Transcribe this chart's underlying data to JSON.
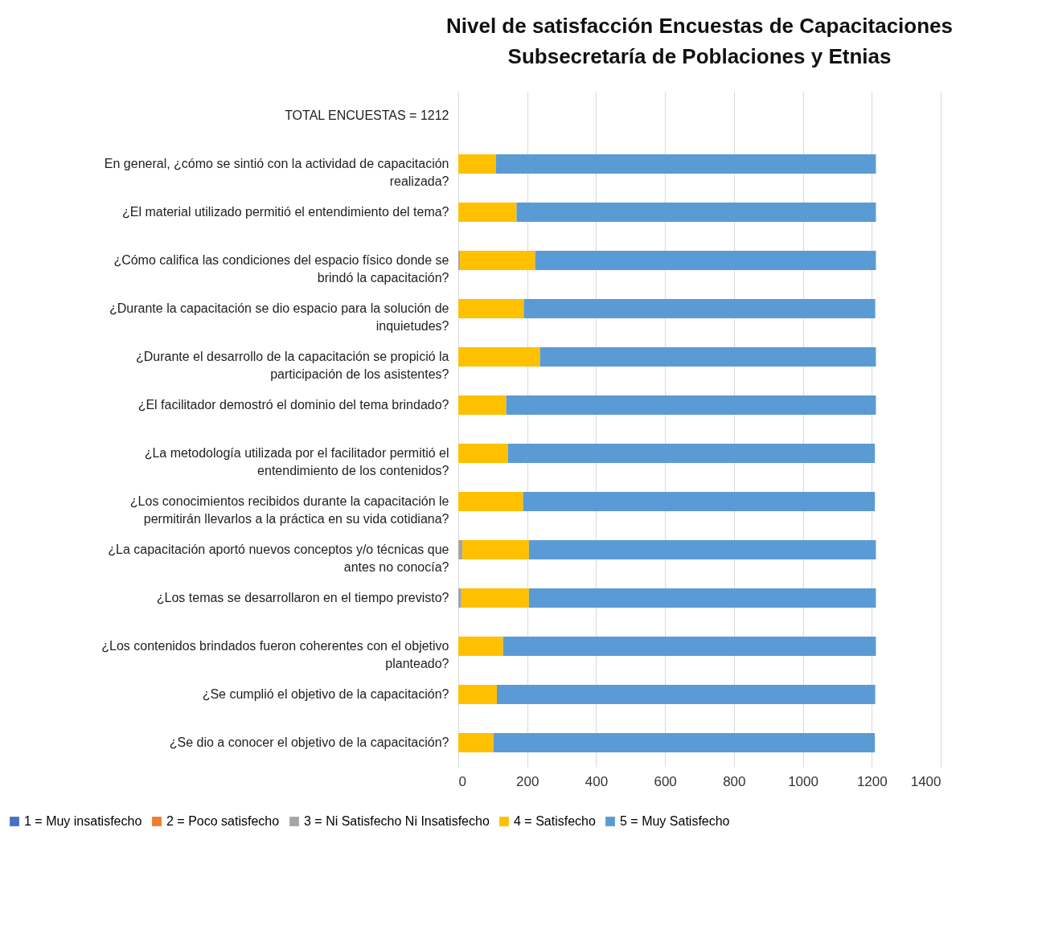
{
  "chart_data": {
    "type": "bar",
    "orientation": "horizontal",
    "stacked": true,
    "title": "Nivel de satisfacción Encuestas de Capacitaciones Subsecretaría de Poblaciones y Etnias",
    "categories": [
      "TOTAL ENCUESTAS = 1212",
      "En general, ¿cómo se sintió con la actividad de capacitación realizada?",
      "¿El material utilizado permitió el entendimiento del tema?",
      "¿Cómo califica las condiciones del espacio físico donde se brindó la capacitación?",
      "¿Durante la capacitación se dio espacio para la solución de inquietudes?",
      "¿Durante el desarrollo de la capacitación se propició la participación de los asistentes?",
      "¿El facilitador demostró el dominio del tema brindado?",
      "¿La metodología utilizada por el facilitador permitió el entendimiento de los contenidos?",
      "¿Los conocimientos recibidos durante la capacitación le permitirán llevarlos a la práctica en su vida cotidiana?",
      "¿La capacitación aportó nuevos conceptos y/o técnicas que antes no conocía?",
      "¿Los temas se desarrollaron en el tiempo previsto?",
      "¿Los contenidos brindados fueron coherentes con el objetivo planteado?",
      "¿Se cumplió el objetivo de la capacitación?",
      "¿Se dio a conocer el objetivo de la capacitación?"
    ],
    "series": [
      {
        "name": "1 = Muy insatisfecho",
        "color": "#4472c4",
        "values": [
          null,
          0,
          0,
          0,
          0,
          0,
          0,
          0,
          0,
          0,
          0,
          0,
          0,
          0
        ]
      },
      {
        "name": "2 = Poco satisfecho",
        "color": "#ed7d31",
        "values": [
          null,
          0,
          0,
          0,
          0,
          0,
          0,
          0,
          0,
          0,
          0,
          0,
          0,
          0
        ]
      },
      {
        "name": "3 = Ni Satisfecho Ni Insatisfecho",
        "color": "#a5a5a5",
        "values": [
          null,
          0,
          0,
          5,
          null,
          0,
          0,
          null,
          null,
          12,
          9,
          0,
          null,
          null
        ]
      },
      {
        "name": "4 = Satisfecho",
        "color": "#ffc000",
        "values": [
          null,
          109,
          169,
          218,
          190,
          237,
          139,
          144,
          188,
          193,
          196,
          130,
          112,
          102
        ]
      },
      {
        "name": "5 = Muy Satisfecho",
        "color": "#5b9bd5",
        "values": [
          null,
          1103,
          1043,
          989,
          1020,
          975,
          1073,
          1065,
          1021,
          1007,
          1007,
          1082,
          1098,
          1107
        ]
      }
    ],
    "xlim": [
      0,
      1400
    ],
    "xticks": [
      0,
      200,
      400,
      600,
      800,
      1000,
      1200,
      1400
    ],
    "grid": "x",
    "legend": "bottom"
  }
}
